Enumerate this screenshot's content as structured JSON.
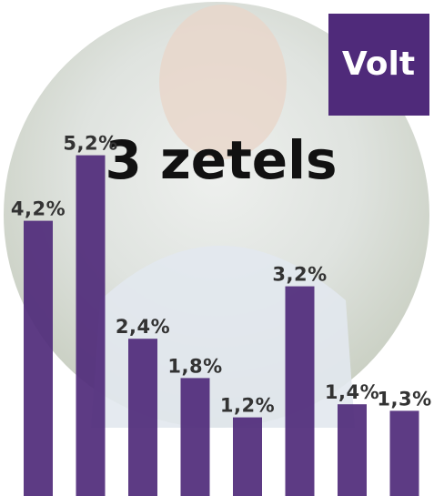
{
  "chart_data": {
    "type": "bar",
    "title": "3 zetels",
    "logo": "Volt",
    "values": [
      4.2,
      5.2,
      2.4,
      1.8,
      1.2,
      3.2,
      1.4,
      1.3
    ],
    "value_labels": [
      "4,2%",
      "5,2%",
      "2,4%",
      "1,8%",
      "1,2%",
      "3,2%",
      "1,4%",
      "1,3%"
    ],
    "color": "#4f2a7a"
  }
}
